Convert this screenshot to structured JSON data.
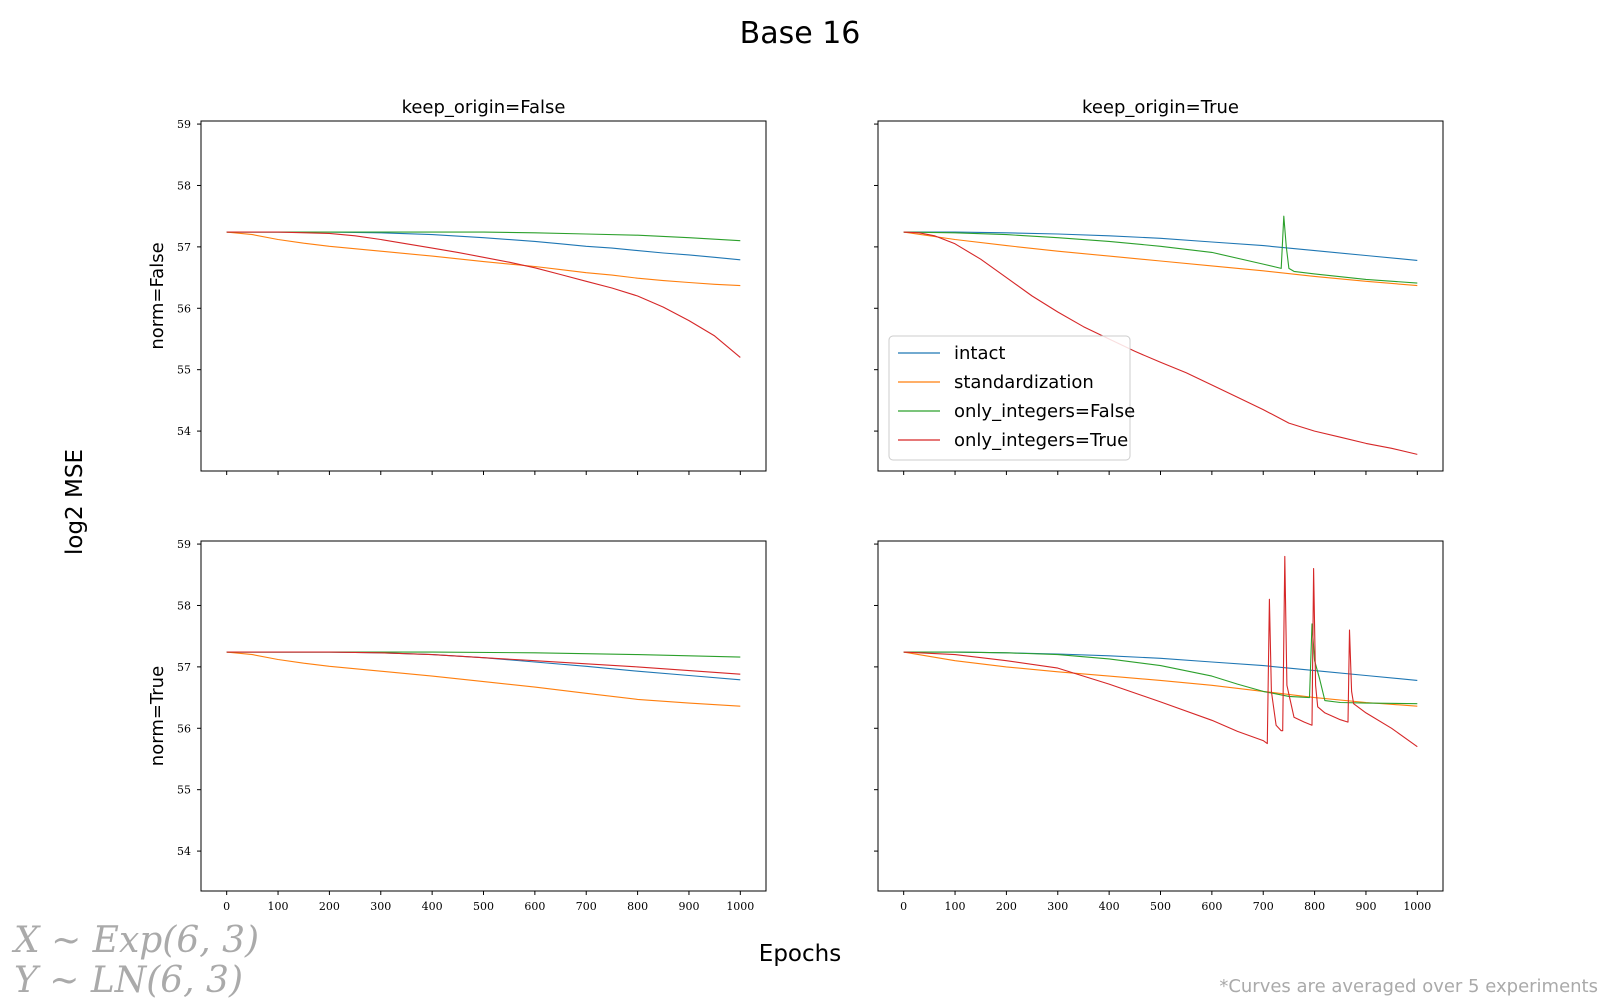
{
  "figure": {
    "title": "Base 16",
    "ylabel": "log2 MSE",
    "xlabel": "Epochs",
    "formula_x": "X ~ Exp(6, 3)",
    "formula_y": "Y ~ LN(6, 3)",
    "footnote": "*Curves are averaged over 5 experiments"
  },
  "colors": {
    "intact": "#1f77b4",
    "standardization": "#ff7f0e",
    "only_integers=False": "#2ca02c",
    "only_integers=True": "#d62728"
  },
  "chart_data": [
    {
      "type": "line",
      "title": "keep_origin=False",
      "row_label": "norm=False",
      "xlim": [
        -50,
        1050
      ],
      "ylim": [
        53.35,
        59.05
      ],
      "xticks": [
        0,
        100,
        200,
        300,
        400,
        500,
        600,
        700,
        800,
        900,
        1000
      ],
      "yticks": [
        54,
        55,
        56,
        57,
        58,
        59
      ],
      "show_xticklabels": false,
      "show_yticklabels": true,
      "series": [
        {
          "name": "intact",
          "x": [
            0,
            100,
            200,
            300,
            400,
            500,
            600,
            650,
            700,
            750,
            800,
            850,
            900,
            950,
            1000
          ],
          "y": [
            57.24,
            57.24,
            57.24,
            57.23,
            57.2,
            57.15,
            57.09,
            57.05,
            57.01,
            56.98,
            56.94,
            56.9,
            56.87,
            56.83,
            56.79
          ]
        },
        {
          "name": "standardization",
          "x": [
            0,
            50,
            100,
            150,
            200,
            300,
            400,
            500,
            600,
            650,
            700,
            750,
            800,
            850,
            900,
            950,
            1000
          ],
          "y": [
            57.24,
            57.2,
            57.12,
            57.06,
            57.01,
            56.93,
            56.85,
            56.76,
            56.68,
            56.63,
            56.58,
            56.54,
            56.49,
            56.45,
            56.42,
            56.39,
            56.37
          ]
        },
        {
          "name": "only_integers=False",
          "x": [
            0,
            100,
            200,
            300,
            400,
            500,
            600,
            700,
            800,
            900,
            1000
          ],
          "y": [
            57.24,
            57.24,
            57.24,
            57.24,
            57.24,
            57.24,
            57.23,
            57.21,
            57.19,
            57.15,
            57.1
          ]
        },
        {
          "name": "only_integers=True",
          "x": [
            0,
            100,
            200,
            250,
            300,
            350,
            400,
            450,
            500,
            550,
            600,
            650,
            700,
            750,
            800,
            850,
            900,
            950,
            1000
          ],
          "y": [
            57.24,
            57.24,
            57.22,
            57.18,
            57.12,
            57.05,
            56.98,
            56.91,
            56.83,
            56.75,
            56.66,
            56.55,
            56.44,
            56.33,
            56.2,
            56.02,
            55.8,
            55.55,
            55.2
          ]
        }
      ]
    },
    {
      "type": "line",
      "title": "keep_origin=True",
      "row_label": "",
      "xlim": [
        -50,
        1050
      ],
      "ylim": [
        53.35,
        59.05
      ],
      "xticks": [
        0,
        100,
        200,
        300,
        400,
        500,
        600,
        700,
        800,
        900,
        1000
      ],
      "yticks": [
        54,
        55,
        56,
        57,
        58,
        59
      ],
      "show_xticklabels": false,
      "show_yticklabels": false,
      "legend": {
        "loc": "lower left",
        "entries": [
          "intact",
          "standardization",
          "only_integers=False",
          "only_integers=True"
        ]
      },
      "series": [
        {
          "name": "intact",
          "x": [
            0,
            100,
            200,
            300,
            400,
            500,
            600,
            700,
            800,
            900,
            1000
          ],
          "y": [
            57.24,
            57.24,
            57.23,
            57.21,
            57.18,
            57.14,
            57.08,
            57.02,
            56.94,
            56.86,
            56.78
          ]
        },
        {
          "name": "standardization",
          "x": [
            0,
            100,
            200,
            300,
            400,
            500,
            600,
            700,
            800,
            900,
            1000
          ],
          "y": [
            57.24,
            57.12,
            57.02,
            56.93,
            56.85,
            56.77,
            56.69,
            56.61,
            56.52,
            56.44,
            56.37
          ]
        },
        {
          "name": "only_integers=False",
          "x": [
            0,
            100,
            200,
            300,
            400,
            500,
            600,
            700,
            735,
            740,
            745,
            750,
            760,
            800,
            900,
            1000
          ],
          "y": [
            57.24,
            57.23,
            57.2,
            57.15,
            57.09,
            57.01,
            56.91,
            56.72,
            56.65,
            57.5,
            57.0,
            56.65,
            56.6,
            56.56,
            56.47,
            56.41
          ]
        },
        {
          "name": "only_integers=True",
          "x": [
            0,
            30,
            60,
            100,
            150,
            200,
            250,
            300,
            350,
            400,
            450,
            500,
            550,
            600,
            650,
            700,
            750,
            800,
            850,
            900,
            950,
            1000
          ],
          "y": [
            57.24,
            57.23,
            57.18,
            57.05,
            56.8,
            56.5,
            56.2,
            55.94,
            55.7,
            55.5,
            55.3,
            55.12,
            54.95,
            54.75,
            54.55,
            54.35,
            54.13,
            54.0,
            53.9,
            53.8,
            53.72,
            53.62
          ]
        }
      ]
    },
    {
      "type": "line",
      "title": "",
      "row_label": "norm=True",
      "xlim": [
        -50,
        1050
      ],
      "ylim": [
        53.35,
        59.05
      ],
      "xticks": [
        0,
        100,
        200,
        300,
        400,
        500,
        600,
        700,
        800,
        900,
        1000
      ],
      "yticks": [
        54,
        55,
        56,
        57,
        58,
        59
      ],
      "show_xticklabels": true,
      "show_yticklabels": true,
      "series": [
        {
          "name": "intact",
          "x": [
            0,
            100,
            200,
            300,
            400,
            500,
            600,
            700,
            800,
            900,
            1000
          ],
          "y": [
            57.24,
            57.24,
            57.24,
            57.23,
            57.2,
            57.15,
            57.08,
            57.01,
            56.93,
            56.86,
            56.79
          ]
        },
        {
          "name": "standardization",
          "x": [
            0,
            50,
            100,
            150,
            200,
            300,
            400,
            500,
            600,
            700,
            800,
            900,
            1000
          ],
          "y": [
            57.24,
            57.2,
            57.12,
            57.06,
            57.01,
            56.93,
            56.85,
            56.76,
            56.67,
            56.57,
            56.47,
            56.41,
            56.36
          ]
        },
        {
          "name": "only_integers=False",
          "x": [
            0,
            200,
            400,
            600,
            800,
            1000
          ],
          "y": [
            57.24,
            57.24,
            57.24,
            57.23,
            57.2,
            57.16
          ]
        },
        {
          "name": "only_integers=True",
          "x": [
            0,
            200,
            300,
            400,
            500,
            600,
            700,
            800,
            900,
            1000
          ],
          "y": [
            57.24,
            57.24,
            57.23,
            57.2,
            57.15,
            57.1,
            57.05,
            57.0,
            56.94,
            56.88
          ]
        }
      ]
    },
    {
      "type": "line",
      "title": "",
      "row_label": "",
      "xlim": [
        -50,
        1050
      ],
      "ylim": [
        53.35,
        59.05
      ],
      "xticks": [
        0,
        100,
        200,
        300,
        400,
        500,
        600,
        700,
        800,
        900,
        1000
      ],
      "yticks": [
        54,
        55,
        56,
        57,
        58,
        59
      ],
      "show_xticklabels": true,
      "show_yticklabels": false,
      "series": [
        {
          "name": "intact",
          "x": [
            0,
            100,
            200,
            300,
            400,
            500,
            600,
            700,
            800,
            900,
            1000
          ],
          "y": [
            57.24,
            57.24,
            57.23,
            57.21,
            57.18,
            57.14,
            57.08,
            57.02,
            56.94,
            56.86,
            56.78
          ]
        },
        {
          "name": "standardization",
          "x": [
            0,
            100,
            200,
            300,
            400,
            500,
            600,
            700,
            800,
            900,
            1000
          ],
          "y": [
            57.24,
            57.1,
            57.0,
            56.92,
            56.85,
            56.78,
            56.7,
            56.6,
            56.5,
            56.42,
            56.36
          ]
        },
        {
          "name": "only_integers=False",
          "x": [
            0,
            100,
            200,
            300,
            400,
            500,
            600,
            650,
            700,
            750,
            790,
            795,
            800,
            810,
            820,
            850,
            900,
            1000
          ],
          "y": [
            57.24,
            57.24,
            57.23,
            57.2,
            57.13,
            57.02,
            56.85,
            56.72,
            56.6,
            56.52,
            56.5,
            57.7,
            57.1,
            56.8,
            56.45,
            56.42,
            56.41,
            56.4
          ]
        },
        {
          "name": "only_integers=True",
          "x": [
            0,
            100,
            200,
            300,
            400,
            500,
            600,
            650,
            700,
            708,
            712,
            716,
            725,
            735,
            738,
            742,
            746,
            760,
            780,
            795,
            798,
            802,
            806,
            820,
            850,
            865,
            868,
            872,
            876,
            900,
            950,
            1000
          ],
          "y": [
            57.24,
            57.2,
            57.1,
            56.98,
            56.72,
            56.43,
            56.13,
            55.95,
            55.8,
            55.75,
            58.1,
            56.6,
            56.05,
            55.96,
            55.96,
            58.8,
            56.7,
            56.18,
            56.1,
            56.05,
            58.6,
            56.7,
            56.35,
            56.25,
            56.14,
            56.1,
            57.6,
            56.6,
            56.4,
            56.25,
            56.0,
            55.7
          ]
        }
      ]
    }
  ]
}
